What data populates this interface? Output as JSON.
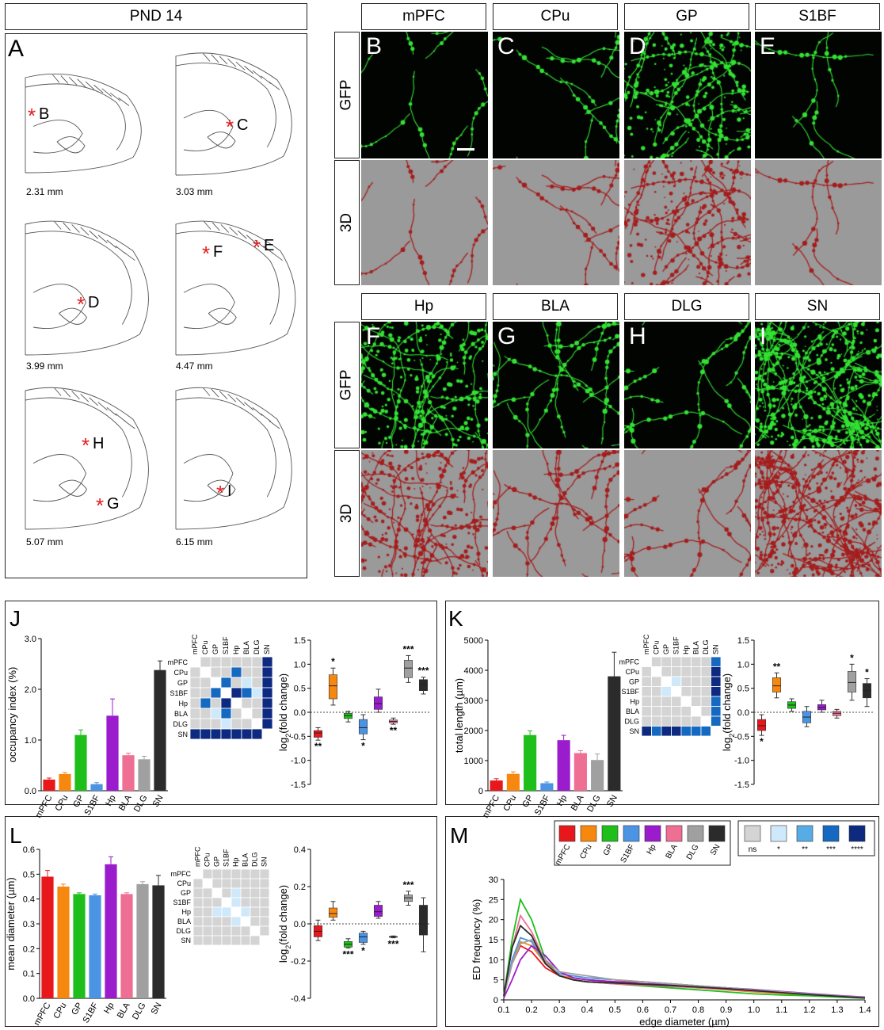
{
  "panel_a": {
    "title": "PND 14",
    "letter": "A",
    "sections": [
      {
        "mm": "2.31 mm",
        "marks": [
          "B"
        ]
      },
      {
        "mm": "3.03 mm",
        "marks": [
          "C"
        ]
      },
      {
        "mm": "3.99 mm",
        "marks": [
          "D"
        ]
      },
      {
        "mm": "4.47 mm",
        "marks": [
          "F",
          "E"
        ]
      },
      {
        "mm": "5.07 mm",
        "marks": [
          "H",
          "G"
        ]
      },
      {
        "mm": "6.15 mm",
        "marks": [
          "I"
        ]
      }
    ],
    "asterisk": "*"
  },
  "images": {
    "row_labels": {
      "gfp": "GFP",
      "d3": "3D"
    },
    "top_regions": [
      {
        "name": "mPFC",
        "letter": "B"
      },
      {
        "name": "CPu",
        "letter": "C"
      },
      {
        "name": "GP",
        "letter": "D"
      },
      {
        "name": "S1BF",
        "letter": "E"
      }
    ],
    "bottom_regions": [
      {
        "name": "Hp",
        "letter": "F"
      },
      {
        "name": "BLA",
        "letter": "G"
      },
      {
        "name": "DLG",
        "letter": "H"
      },
      {
        "name": "SN",
        "letter": "I"
      }
    ],
    "colors": {
      "gfp_bg": "#020402",
      "gfp_fiber": "#33e233",
      "d3_bg": "#9a9a9a",
      "d3_fiber": "#a51d1d"
    }
  },
  "chart_data": [
    {
      "id": "J_bar",
      "panel": "J",
      "type": "bar",
      "categories": [
        "mPFC",
        "CPu",
        "GP",
        "S1BF",
        "Hp",
        "BLA",
        "DLG",
        "SN"
      ],
      "values": [
        0.22,
        0.33,
        1.1,
        0.13,
        1.48,
        0.7,
        0.62,
        2.38
      ],
      "errors": [
        0.03,
        0.03,
        0.1,
        0.03,
        0.33,
        0.04,
        0.06,
        0.18
      ],
      "ylabel": "occupancy index (%)",
      "ylim": [
        0,
        3.0
      ],
      "yticks": [
        "0.0",
        "1.0",
        "2.0",
        "3.0"
      ]
    },
    {
      "id": "J_box",
      "panel": "J",
      "type": "box",
      "ylabel": "log2(fold change)",
      "ylim": [
        -1.5,
        1.5
      ],
      "yticks": [
        "-1.5",
        "-1.0",
        "-0.5",
        "0.0",
        "0.5",
        "1.0",
        "1.5"
      ],
      "boxes": [
        {
          "min": -0.58,
          "q1": -0.52,
          "median": -0.43,
          "q3": -0.38,
          "max": -0.32,
          "sig": "**",
          "sig_pos": "below"
        },
        {
          "min": 0.15,
          "q1": 0.28,
          "median": 0.55,
          "q3": 0.78,
          "max": 0.92,
          "sig": "*",
          "sig_pos": "above"
        },
        {
          "min": -0.2,
          "q1": -0.13,
          "median": -0.07,
          "q3": -0.02,
          "max": 0.02,
          "sig": "",
          "sig_pos": "below"
        },
        {
          "min": -0.57,
          "q1": -0.45,
          "median": -0.32,
          "q3": -0.15,
          "max": -0.05,
          "sig": "*",
          "sig_pos": "below"
        },
        {
          "min": 0.0,
          "q1": 0.06,
          "median": 0.18,
          "q3": 0.32,
          "max": 0.48,
          "sig": "",
          "sig_pos": "above"
        },
        {
          "min": -0.25,
          "q1": -0.22,
          "median": -0.19,
          "q3": -0.16,
          "max": -0.12,
          "sig": "**",
          "sig_pos": "below"
        },
        {
          "min": 0.62,
          "q1": 0.72,
          "median": 0.92,
          "q3": 1.08,
          "max": 1.18,
          "sig": "***",
          "sig_pos": "above"
        },
        {
          "min": 0.38,
          "q1": 0.45,
          "median": 0.58,
          "q3": 0.68,
          "max": 0.73,
          "sig": "***",
          "sig_pos": "above"
        }
      ]
    },
    {
      "id": "K_bar",
      "panel": "K",
      "type": "bar",
      "categories": [
        "mPFC",
        "CPu",
        "GP",
        "S1BF",
        "Hp",
        "BLA",
        "DLG",
        "SN"
      ],
      "values": [
        340,
        560,
        1850,
        250,
        1680,
        1250,
        1020,
        3800
      ],
      "errors": [
        60,
        70,
        140,
        40,
        160,
        80,
        200,
        800
      ],
      "ylabel": "total length (µm)",
      "ylim": [
        0,
        5000
      ],
      "yticks": [
        "0",
        "1000",
        "2000",
        "3000",
        "4000",
        "5000"
      ]
    },
    {
      "id": "K_box",
      "panel": "K",
      "type": "box",
      "ylabel": "log2(fold change)",
      "ylim": [
        -1.5,
        1.5
      ],
      "yticks": [
        "-1.5",
        "-1.0",
        "-0.5",
        "0.0",
        "0.5",
        "1.0",
        "1.5"
      ],
      "boxes": [
        {
          "min": -0.48,
          "q1": -0.38,
          "median": -0.28,
          "q3": -0.15,
          "max": -0.05,
          "sig": "*",
          "sig_pos": "below"
        },
        {
          "min": 0.3,
          "q1": 0.42,
          "median": 0.55,
          "q3": 0.72,
          "max": 0.82,
          "sig": "**",
          "sig_pos": "above"
        },
        {
          "min": 0.02,
          "q1": 0.08,
          "median": 0.15,
          "q3": 0.22,
          "max": 0.28,
          "sig": "",
          "sig_pos": "above"
        },
        {
          "min": -0.3,
          "q1": -0.22,
          "median": -0.1,
          "q3": 0.02,
          "max": 0.12,
          "sig": "",
          "sig_pos": "above"
        },
        {
          "min": 0.0,
          "q1": 0.05,
          "median": 0.1,
          "q3": 0.16,
          "max": 0.25,
          "sig": "",
          "sig_pos": "above"
        },
        {
          "min": -0.12,
          "q1": -0.07,
          "median": -0.02,
          "q3": 0.02,
          "max": 0.06,
          "sig": "",
          "sig_pos": "above"
        },
        {
          "min": 0.25,
          "q1": 0.42,
          "median": 0.62,
          "q3": 0.85,
          "max": 1.0,
          "sig": "*",
          "sig_pos": "above"
        },
        {
          "min": 0.12,
          "q1": 0.3,
          "median": 0.45,
          "q3": 0.6,
          "max": 0.7,
          "sig": "*",
          "sig_pos": "above"
        }
      ]
    },
    {
      "id": "L_bar",
      "panel": "L",
      "type": "bar",
      "categories": [
        "mPFC",
        "CPu",
        "GP",
        "S1BF",
        "Hp",
        "BLA",
        "DLG",
        "SN"
      ],
      "values": [
        0.49,
        0.45,
        0.42,
        0.415,
        0.54,
        0.42,
        0.46,
        0.455
      ],
      "errors": [
        0.025,
        0.01,
        0.005,
        0.005,
        0.03,
        0.005,
        0.01,
        0.04
      ],
      "ylabel": "mean diameter (µm)",
      "ylim": [
        0,
        0.6
      ],
      "yticks": [
        "0.0",
        "0.1",
        "0.2",
        "0.3",
        "0.4",
        "0.5",
        "0.6"
      ]
    },
    {
      "id": "L_box",
      "panel": "L",
      "type": "box",
      "ylabel": "log2(fold change)",
      "ylim": [
        -0.4,
        0.4
      ],
      "yticks": [
        "-0.4",
        "-0.2",
        "0.0",
        "0.2",
        "0.4"
      ],
      "boxes": [
        {
          "min": -0.09,
          "q1": -0.07,
          "median": -0.04,
          "q3": -0.01,
          "max": 0.02,
          "sig": "",
          "sig_pos": "above"
        },
        {
          "min": 0.02,
          "q1": 0.035,
          "median": 0.055,
          "q3": 0.085,
          "max": 0.12,
          "sig": "",
          "sig_pos": "above"
        },
        {
          "min": -0.13,
          "q1": -0.125,
          "median": -0.11,
          "q3": -0.095,
          "max": -0.08,
          "sig": "***",
          "sig_pos": "below"
        },
        {
          "min": -0.11,
          "q1": -0.1,
          "median": -0.07,
          "q3": -0.05,
          "max": -0.04,
          "sig": "*",
          "sig_pos": "below"
        },
        {
          "min": 0.03,
          "q1": 0.04,
          "median": 0.065,
          "q3": 0.1,
          "max": 0.12,
          "sig": "",
          "sig_pos": "above"
        },
        {
          "min": -0.075,
          "q1": -0.072,
          "median": -0.07,
          "q3": -0.068,
          "max": -0.065,
          "sig": "***",
          "sig_pos": "below"
        },
        {
          "min": 0.1,
          "q1": 0.12,
          "median": 0.14,
          "q3": 0.155,
          "max": 0.175,
          "sig": "***",
          "sig_pos": "above"
        },
        {
          "min": -0.15,
          "q1": -0.06,
          "median": 0.0,
          "q3": 0.1,
          "max": 0.14,
          "sig": "",
          "sig_pos": "above"
        }
      ]
    },
    {
      "id": "M_line",
      "panel": "M",
      "type": "line",
      "xlabel": "edge diameter (µm)",
      "ylabel": "ED frequency (%)",
      "xlim": [
        0.1,
        1.4
      ],
      "ylim": [
        0,
        30
      ],
      "xticks": [
        "0.1",
        "0.2",
        "0.3",
        "0.4",
        "0.5",
        "0.6",
        "0.7",
        "0.8",
        "0.9",
        "1.0",
        "1.1",
        "1.2",
        "1.3",
        "1.4"
      ],
      "yticks": [
        "0",
        "5",
        "10",
        "15",
        "20",
        "25",
        "30"
      ],
      "x": [
        0.1,
        0.13,
        0.16,
        0.2,
        0.25,
        0.3,
        0.35,
        0.4,
        0.5,
        0.6,
        0.7,
        0.8,
        0.9,
        1.0,
        1.1,
        1.2,
        1.3,
        1.4
      ],
      "series": [
        {
          "values": [
            1,
            9,
            13.5,
            12,
            8,
            6,
            5.5,
            5,
            4.5,
            4.5,
            4,
            3.5,
            3,
            2.5,
            2,
            1.5,
            1,
            0.5
          ]
        },
        {
          "values": [
            1,
            9,
            14.5,
            13.5,
            9,
            6,
            5.5,
            5,
            4.5,
            4,
            3.5,
            3,
            2.5,
            2,
            1.6,
            1.2,
            0.9,
            0.5
          ]
        },
        {
          "values": [
            1,
            15,
            25,
            20,
            10,
            6,
            5,
            4.5,
            4,
            3.5,
            3,
            2.5,
            2,
            1.5,
            1.2,
            1,
            0.7,
            0.4
          ]
        },
        {
          "values": [
            1,
            10,
            15.5,
            14.5,
            9,
            6.5,
            6,
            5.5,
            5,
            4.5,
            4,
            3.5,
            3,
            2.5,
            2,
            1.5,
            1,
            0.6
          ]
        },
        {
          "values": [
            0.5,
            5,
            10,
            13.5,
            11,
            7,
            5.5,
            5,
            4.5,
            4,
            3.8,
            3.4,
            3,
            2.6,
            2.1,
            1.6,
            1.1,
            0.7
          ]
        },
        {
          "values": [
            1,
            13,
            21,
            17,
            9.5,
            6,
            5,
            4.5,
            4,
            3.7,
            3.4,
            3,
            2.6,
            2.2,
            1.8,
            1.3,
            0.9,
            0.5
          ]
        },
        {
          "values": [
            1,
            9,
            14,
            15,
            10,
            7,
            6.5,
            6,
            5,
            4.5,
            4,
            3.5,
            3,
            2.5,
            2,
            1.5,
            1,
            0.6
          ]
        },
        {
          "values": [
            1,
            13,
            18.5,
            16,
            9,
            6,
            5,
            4.5,
            4.2,
            3.9,
            3.6,
            3.2,
            2.8,
            2.3,
            1.8,
            1.3,
            0.9,
            0.5
          ]
        }
      ]
    }
  ],
  "region_colors": [
    "#e8171c",
    "#f7880f",
    "#1fbf1b",
    "#4b93e3",
    "#9a1ccd",
    "#ee6f93",
    "#a0a0a0",
    "#2b2b2b"
  ],
  "heat_palette": {
    "ns": "#d4d4d4",
    "p1": "#cfe9fb",
    "p2": "#58ace6",
    "p3": "#1569c0",
    "p4": "#0d2a80"
  },
  "heatmaps": {
    "J": [
      [
        0,
        0,
        0,
        0,
        0,
        0,
        0,
        4
      ],
      [
        0,
        0,
        0,
        0,
        3,
        0,
        0,
        4
      ],
      [
        0,
        0,
        0,
        3,
        0,
        1,
        0,
        4
      ],
      [
        0,
        0,
        3,
        0,
        4,
        3,
        1,
        4
      ],
      [
        0,
        3,
        0,
        4,
        0,
        0,
        0,
        4
      ],
      [
        0,
        0,
        1,
        3,
        0,
        0,
        0,
        4
      ],
      [
        0,
        0,
        0,
        1,
        0,
        0,
        0,
        4
      ],
      [
        4,
        4,
        4,
        4,
        4,
        4,
        4,
        0
      ]
    ],
    "K": [
      [
        0,
        0,
        0,
        0,
        0,
        0,
        0,
        3
      ],
      [
        0,
        0,
        0,
        0,
        0,
        0,
        0,
        4
      ],
      [
        0,
        0,
        0,
        1,
        0,
        0,
        0,
        4
      ],
      [
        0,
        0,
        1,
        0,
        0,
        0,
        0,
        4
      ],
      [
        0,
        0,
        0,
        0,
        0,
        0,
        0,
        3
      ],
      [
        0,
        0,
        0,
        0,
        0,
        0,
        0,
        3
      ],
      [
        0,
        0,
        0,
        0,
        0,
        0,
        0,
        3
      ],
      [
        4,
        3,
        4,
        4,
        3,
        3,
        3,
        0
      ]
    ],
    "L": [
      [
        0,
        0,
        0,
        0,
        0,
        0,
        0,
        0
      ],
      [
        0,
        0,
        0,
        0,
        0,
        0,
        0,
        0
      ],
      [
        0,
        0,
        0,
        0,
        1,
        0,
        0,
        0
      ],
      [
        0,
        0,
        0,
        0,
        1,
        0,
        0,
        0
      ],
      [
        0,
        0,
        1,
        1,
        0,
        1,
        0,
        0
      ],
      [
        0,
        0,
        0,
        0,
        1,
        0,
        0,
        0
      ],
      [
        0,
        0,
        0,
        0,
        0,
        0,
        0,
        0
      ],
      [
        0,
        0,
        0,
        0,
        0,
        0,
        0,
        0
      ]
    ]
  },
  "heat_labels": [
    "mPFC",
    "CPu",
    "GP",
    "S1BF",
    "Hp",
    "BLA",
    "DLG",
    "SN"
  ],
  "panel_letters": {
    "J": "J",
    "K": "K",
    "L": "L",
    "M": "M"
  },
  "legend_regions": [
    "mPFC",
    "CPu",
    "GP",
    "S1BF",
    "Hp",
    "BLA",
    "DLG",
    "SN"
  ],
  "legend_sig": [
    "ns",
    "*",
    "**",
    "***",
    "****"
  ]
}
